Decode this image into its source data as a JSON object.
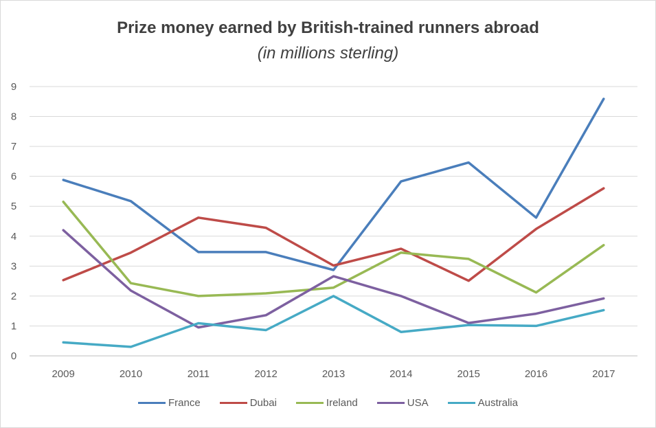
{
  "chart_data": {
    "type": "line",
    "title": "Prize money earned by British-trained runners abroad",
    "subtitle": "(in millions sterling)",
    "xlabel": "",
    "ylabel": "",
    "x": [
      "2009",
      "2010",
      "2011",
      "2012",
      "2013",
      "2014",
      "2015",
      "2016",
      "2017"
    ],
    "ylim": [
      0,
      9
    ],
    "yticks": [
      "0",
      "1",
      "2",
      "3",
      "4",
      "5",
      "6",
      "7",
      "8",
      "9"
    ],
    "grid": true,
    "legend_position": "bottom",
    "series": [
      {
        "name": "France",
        "color": "#4a7ebb",
        "values": [
          5.88,
          5.17,
          3.47,
          3.47,
          2.87,
          5.83,
          6.46,
          4.62,
          8.59
        ]
      },
      {
        "name": "Dubai",
        "color": "#be4b48",
        "values": [
          2.53,
          3.45,
          4.62,
          4.28,
          3.02,
          3.58,
          2.51,
          4.24,
          5.6
        ]
      },
      {
        "name": "Ireland",
        "color": "#98b954",
        "values": [
          5.15,
          2.43,
          2.0,
          2.09,
          2.28,
          3.45,
          3.24,
          2.12,
          3.7
        ]
      },
      {
        "name": "USA",
        "color": "#7d60a0",
        "values": [
          4.2,
          2.18,
          0.95,
          1.36,
          2.66,
          2.0,
          1.1,
          1.41,
          1.92
        ]
      },
      {
        "name": "Australia",
        "color": "#46aac5",
        "values": [
          0.45,
          0.3,
          1.09,
          0.86,
          2.0,
          0.8,
          1.03,
          1.0,
          1.53
        ]
      }
    ]
  }
}
